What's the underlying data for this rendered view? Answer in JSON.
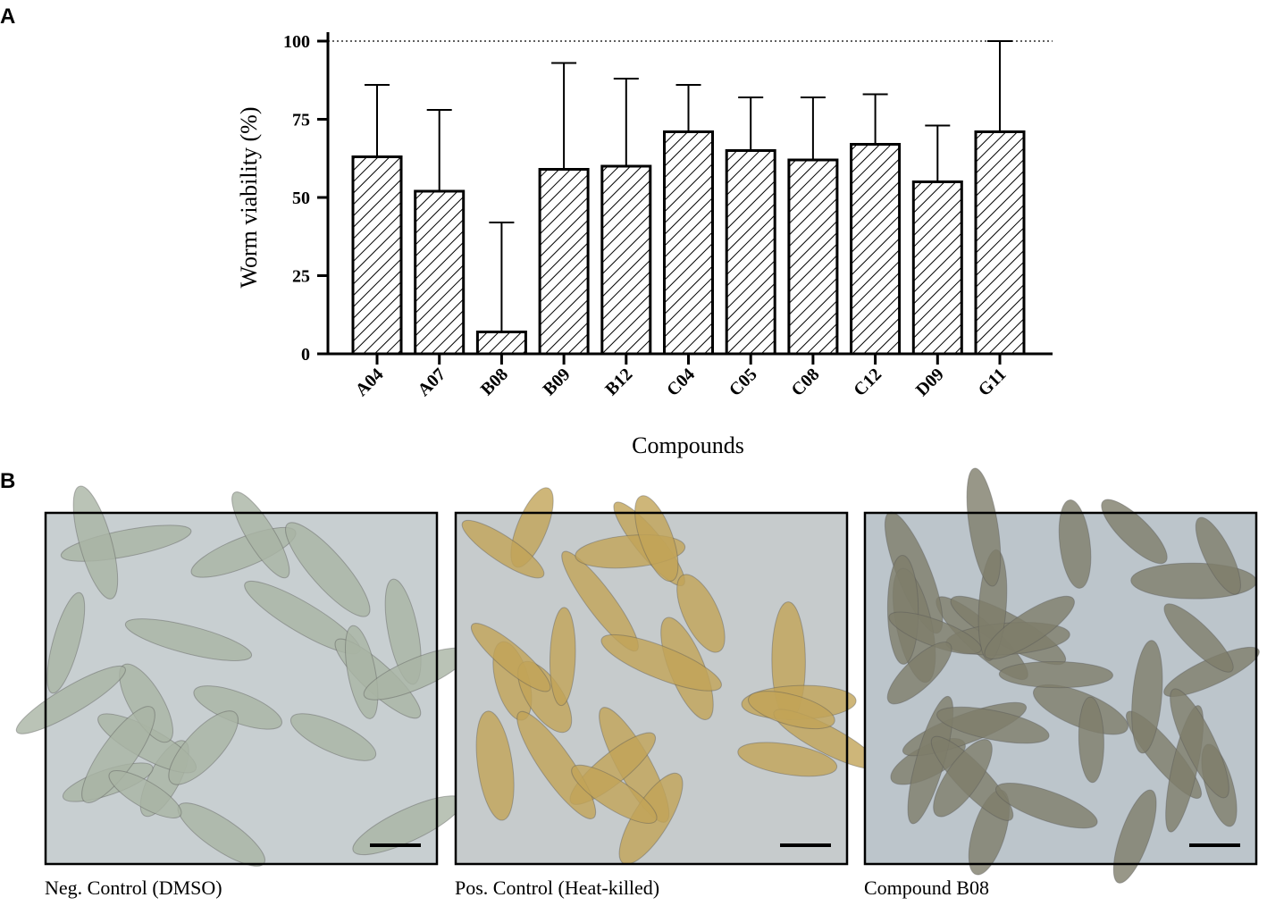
{
  "panel_labels": [
    "A",
    "B"
  ],
  "chart_data": {
    "type": "bar",
    "categories": [
      "A04",
      "A07",
      "B08",
      "B09",
      "B12",
      "C04",
      "C05",
      "C08",
      "C12",
      "D09",
      "G11"
    ],
    "values": [
      63,
      52,
      7,
      59,
      60,
      71,
      65,
      62,
      67,
      55,
      71
    ],
    "errors": [
      23,
      26,
      35,
      34,
      28,
      15,
      17,
      20,
      16,
      18,
      29
    ],
    "ylabel": "Worm viability (%)",
    "xlabel": "Compounds",
    "ylim": [
      0,
      100
    ],
    "yticks": [
      0,
      25,
      50,
      75,
      100
    ],
    "reference_line": 100,
    "color": "#ffffff",
    "hatch": true
  },
  "images": [
    {
      "caption": "Neg. Control (DMSO)"
    },
    {
      "caption": "Pos. Control (Heat-killed)"
    },
    {
      "caption": "Compound B08"
    }
  ]
}
